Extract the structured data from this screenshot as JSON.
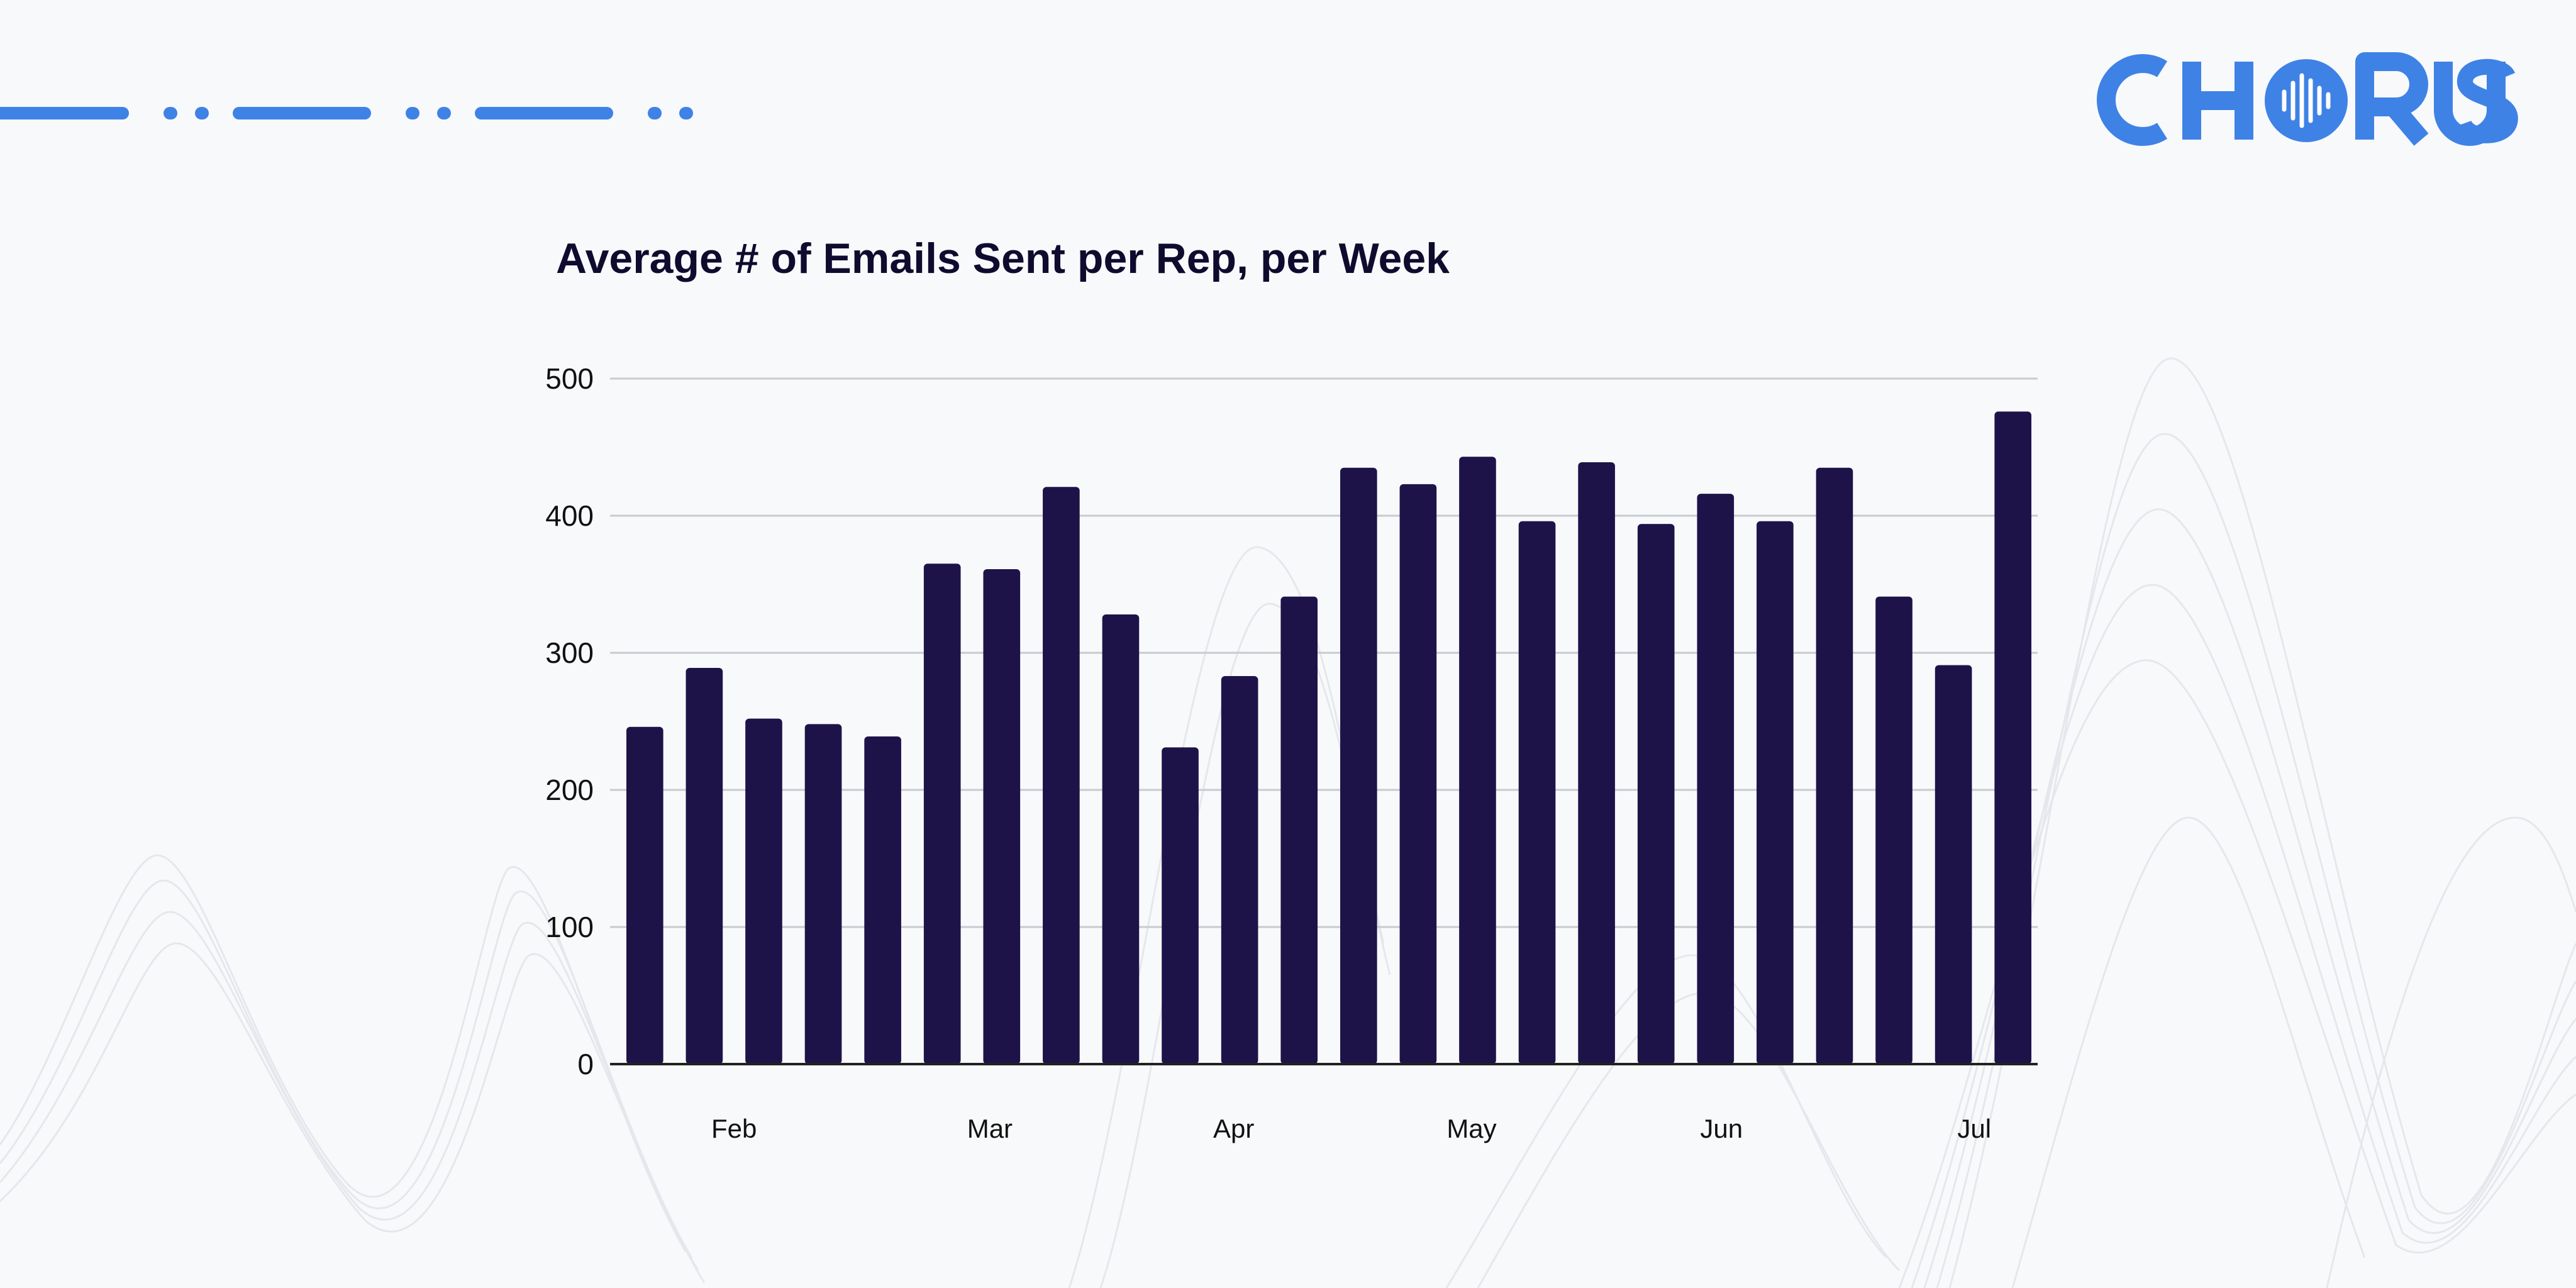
{
  "brand": {
    "logo_text": "CHORUS",
    "color": "#3f82e6"
  },
  "chart_data": {
    "type": "bar",
    "title": "Average # of Emails Sent per Rep, per Week",
    "xlabel": "",
    "ylabel": "",
    "ylim": [
      0,
      500
    ],
    "yticks": [
      0,
      100,
      200,
      300,
      400,
      500
    ],
    "grid": true,
    "bar_color": "#1e1349",
    "month_labels": [
      {
        "label": "Feb",
        "position": 1.5
      },
      {
        "label": "Mar",
        "position": 5.8
      },
      {
        "label": "Apr",
        "position": 9.9
      },
      {
        "label": "May",
        "position": 13.9
      },
      {
        "label": "Jun",
        "position": 18.1
      },
      {
        "label": "Jul",
        "position": 22.35
      }
    ],
    "values": [
      246,
      289,
      252,
      248,
      239,
      365,
      361,
      421,
      328,
      231,
      283,
      341,
      435,
      423,
      443,
      396,
      439,
      394,
      416,
      396,
      435,
      341,
      291,
      476
    ]
  }
}
